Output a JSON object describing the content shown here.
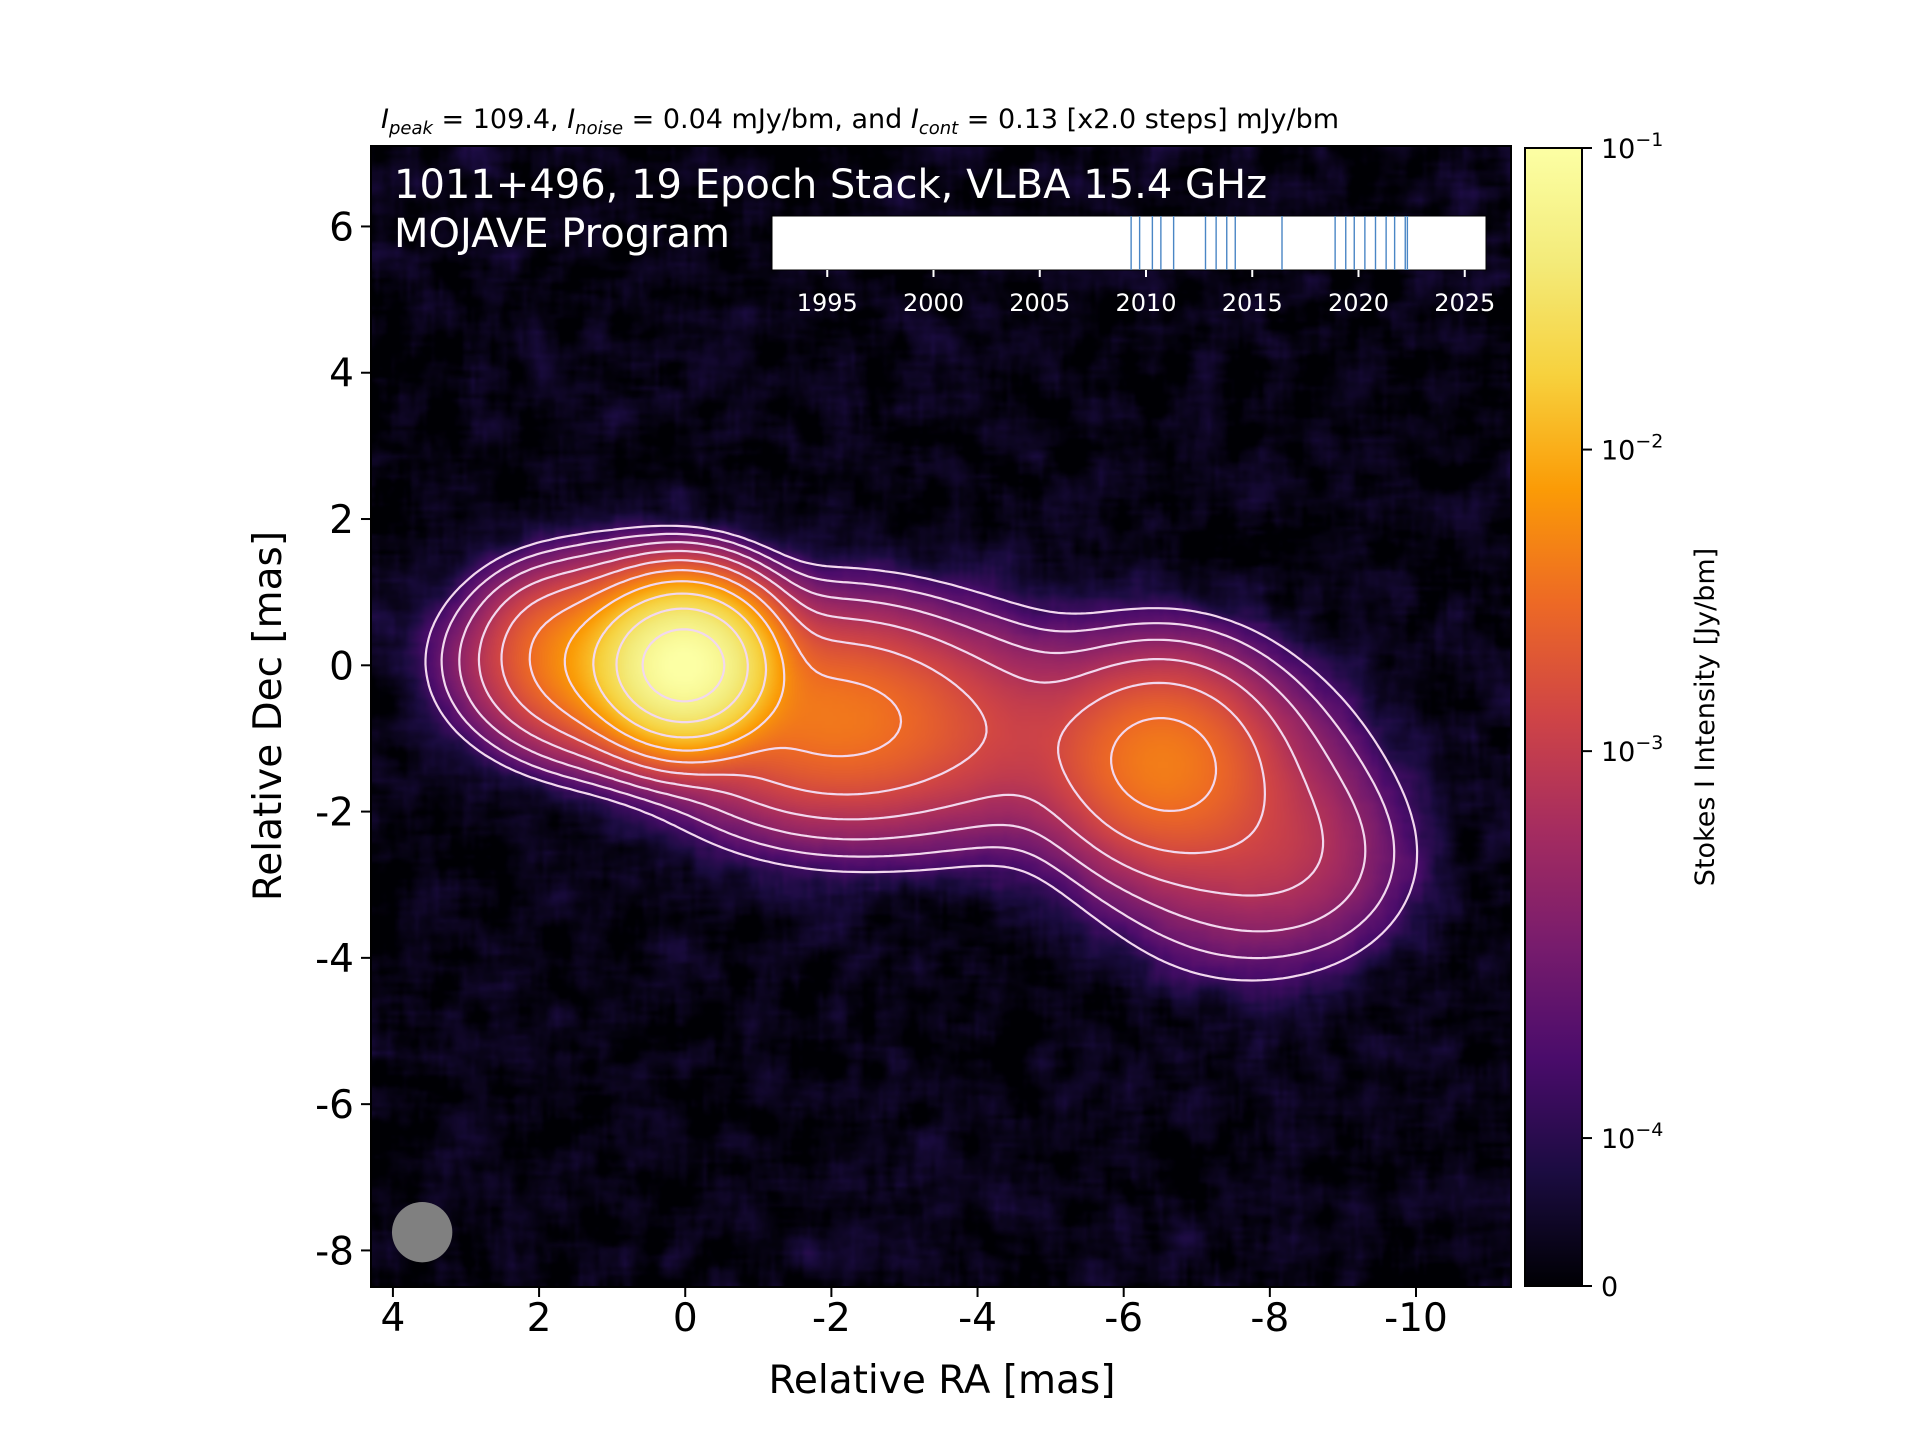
{
  "chart_data": {
    "type": "heatmap",
    "title": {
      "peak_symbol": "I",
      "peak_sub": "peak",
      "peak_text": " = 109.4, ",
      "noise_symbol": "I",
      "noise_sub": "noise",
      "noise_text": " = 0.04 mJy/bm, and ",
      "cont_symbol": "I",
      "cont_sub": "cont",
      "cont_text": " = 0.13 [x2.0 steps] mJy/bm"
    },
    "annotation_line1": "1011+496, 19 Epoch Stack, VLBA 15.4 GHz",
    "annotation_line2": "MOJAVE Program",
    "xlabel": "Relative RA [mas]",
    "ylabel": "Relative Dec [mas]",
    "xlim": [
      4.3,
      -11.3
    ],
    "ylim": [
      -8.5,
      7.1
    ],
    "xticks": [
      {
        "value": 4,
        "label": "4"
      },
      {
        "value": 2,
        "label": "2"
      },
      {
        "value": 0,
        "label": "0"
      },
      {
        "value": -2,
        "label": "-2"
      },
      {
        "value": -4,
        "label": "-4"
      },
      {
        "value": -6,
        "label": "-6"
      },
      {
        "value": -8,
        "label": "-8"
      },
      {
        "value": -10,
        "label": "-10"
      }
    ],
    "yticks": [
      {
        "value": 6,
        "label": "6"
      },
      {
        "value": 4,
        "label": "4"
      },
      {
        "value": 2,
        "label": "2"
      },
      {
        "value": 0,
        "label": "0"
      },
      {
        "value": -2,
        "label": "-2"
      },
      {
        "value": -4,
        "label": "-4"
      },
      {
        "value": -6,
        "label": "-6"
      },
      {
        "value": -8,
        "label": "-8"
      }
    ],
    "colorbar": {
      "label": "Stokes I Intensity [Jy/bm]",
      "scale": "log",
      "colormap": "inferno",
      "ticks": [
        {
          "frac": 1.0,
          "base": "10",
          "exp": "−1"
        },
        {
          "frac": 0.735,
          "base": "10",
          "exp": "−2"
        },
        {
          "frac": 0.47,
          "base": "10",
          "exp": "−3"
        },
        {
          "frac": 0.13,
          "base": "10",
          "exp": "−4"
        },
        {
          "frac": 0.0,
          "base": "0",
          "exp": ""
        }
      ]
    },
    "epoch_timeline": {
      "xlim": [
        1992.4,
        2026.0
      ],
      "ticks": [
        1995,
        2000,
        2005,
        2010,
        2015,
        2020,
        2025
      ],
      "epochs": [
        2009.3,
        2009.7,
        2010.3,
        2010.7,
        2011.3,
        2012.8,
        2013.3,
        2013.8,
        2014.2,
        2016.4,
        2018.9,
        2019.4,
        2019.8,
        2020.3,
        2020.8,
        2021.3,
        2021.7,
        2022.2,
        2022.3
      ],
      "line_color": "#4a86c5"
    },
    "components": [
      {
        "ra": 0.0,
        "dec": 0.0,
        "sx": 0.55,
        "sy": 0.5,
        "log_peak": -1.0
      },
      {
        "ra": 0.9,
        "dec": 0.05,
        "sx": 0.9,
        "sy": 0.6,
        "log_peak": -2.0
      },
      {
        "ra": -1.9,
        "dec": -0.7,
        "sx": 1.1,
        "sy": 0.75,
        "log_peak": -2.35
      },
      {
        "ra": -3.2,
        "dec": -0.9,
        "sx": 1.2,
        "sy": 0.8,
        "log_peak": -2.9
      },
      {
        "ra": -4.7,
        "dec": -1.0,
        "sx": 1.0,
        "sy": 0.75,
        "log_peak": -3.2
      },
      {
        "ra": -6.5,
        "dec": -1.3,
        "sx": 0.8,
        "sy": 0.75,
        "log_peak": -2.3
      },
      {
        "ra": -7.5,
        "dec": -2.1,
        "sx": 1.0,
        "sy": 1.0,
        "log_peak": -2.9
      },
      {
        "ra": -8.5,
        "dec": -2.7,
        "sx": 0.8,
        "sy": 0.7,
        "log_peak": -3.3
      },
      {
        "ra": 2.0,
        "dec": 0.6,
        "sx": 0.4,
        "sy": 0.4,
        "log_peak": -3.4
      }
    ],
    "contour_levels_jy": [
      0.00013,
      0.00026,
      0.00052,
      0.00104,
      0.00208,
      0.00416,
      0.00832,
      0.01664,
      0.03328,
      0.06656
    ],
    "beam": {
      "ra": 3.6,
      "dec": -7.75,
      "major": 0.7,
      "minor": 0.7,
      "color": "#808080"
    },
    "colors": {
      "contour": "#f2d8ee",
      "background": "#000004",
      "text": "#ffffff"
    }
  }
}
